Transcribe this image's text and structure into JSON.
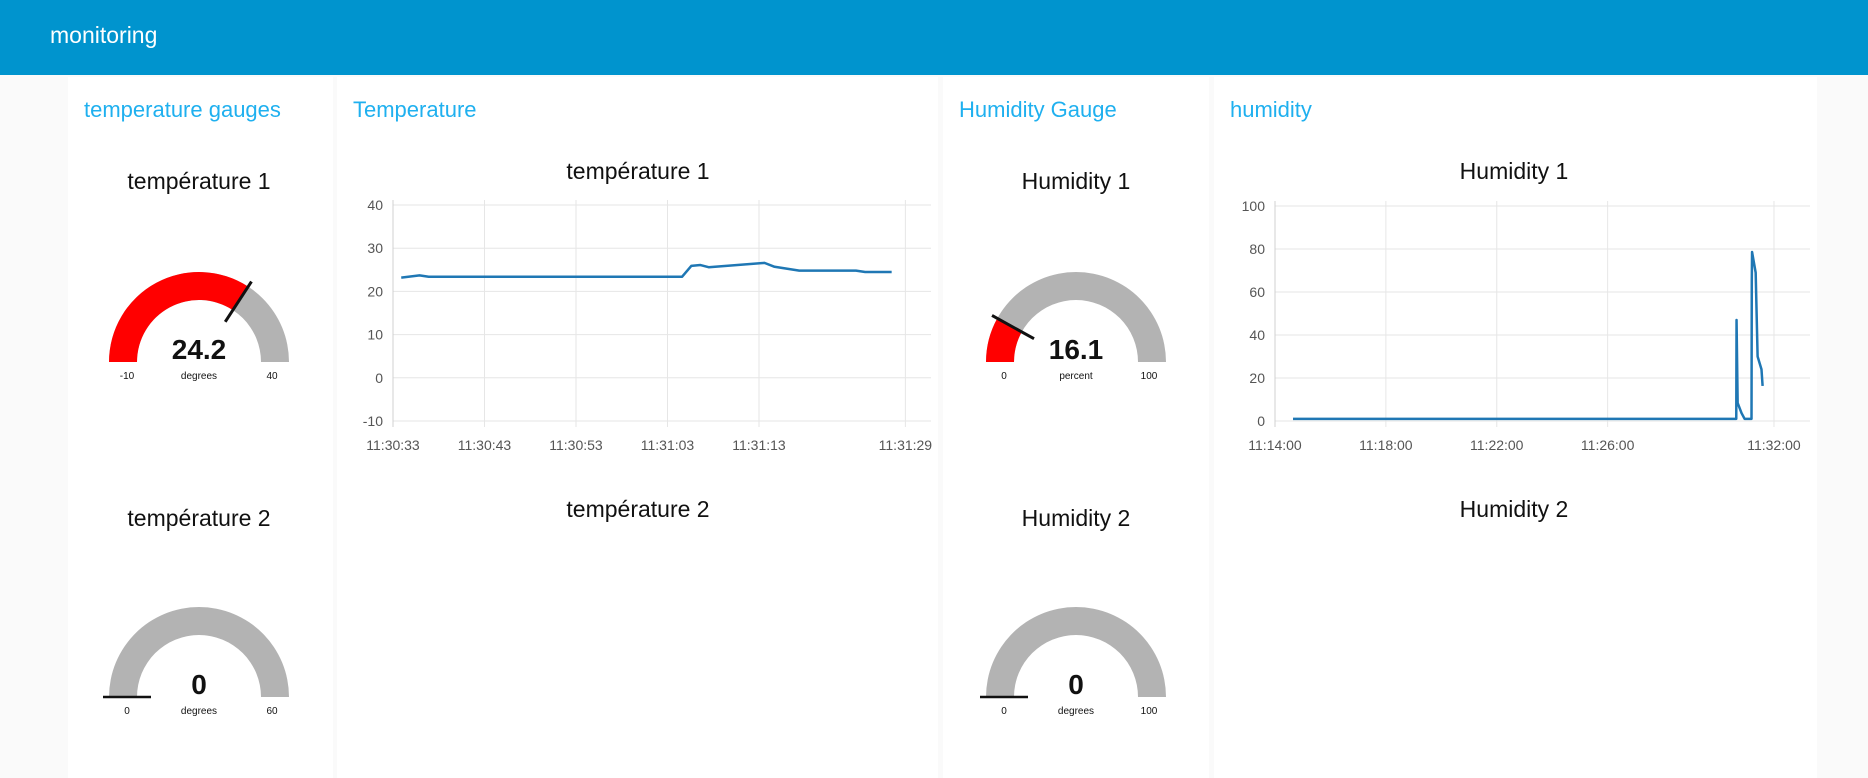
{
  "header": {
    "title": "monitoring"
  },
  "colors": {
    "header": "#0094ce",
    "title": "#1fb0ef",
    "gauge_fill": "#ff0000",
    "gauge_bg": "#b3b3b3",
    "line": "#1f77b4"
  },
  "panels": [
    {
      "title": "temperature gauges"
    },
    {
      "title": "Temperature"
    },
    {
      "title": "Humidity Gauge"
    },
    {
      "title": "humidity"
    }
  ],
  "gauges": [
    {
      "title": "température 1",
      "value": 24.2,
      "display": "24.2",
      "min": -10,
      "max": 40,
      "min_label": "-10",
      "max_label": "40",
      "units": "degrees"
    },
    {
      "title": "température 2",
      "value": 0,
      "display": "0",
      "min": 0,
      "max": 60,
      "min_label": "0",
      "max_label": "60",
      "units": "degrees"
    },
    {
      "title": "Humidity 1",
      "value": 16.1,
      "display": "16.1",
      "min": 0,
      "max": 100,
      "min_label": "0",
      "max_label": "100",
      "units": "percent"
    },
    {
      "title": "Humidity 2",
      "value": 0,
      "display": "0",
      "min": 0,
      "max": 100,
      "min_label": "0",
      "max_label": "100",
      "units": "degrees"
    }
  ],
  "chart_titles": {
    "temp2": "température 2",
    "hum2": "Humidity 2"
  },
  "chart_data": [
    {
      "type": "line",
      "title": "température 1",
      "ylim": [
        -10,
        40
      ],
      "yticks": [
        "-10",
        "0",
        "10",
        "20",
        "30",
        "40"
      ],
      "xunit": "seconds since 11:30:33",
      "xlim": [
        0,
        58.8
      ],
      "xticks": [
        {
          "t": 0,
          "label": "11:30:33"
        },
        {
          "t": 10,
          "label": "11:30:43"
        },
        {
          "t": 20,
          "label": "11:30:53"
        },
        {
          "t": 30,
          "label": "11:31:03"
        },
        {
          "t": 40,
          "label": "11:31:13"
        },
        {
          "t": 56,
          "label": "11:31:29"
        }
      ],
      "x": [
        0.9,
        2.9,
        3.9,
        31.6,
        32.6,
        33.6,
        34.5,
        40.6,
        41.7,
        44.4,
        50.6,
        51.6,
        54.5
      ],
      "y": [
        23.2,
        23.7,
        23.4,
        23.4,
        25.9,
        26.1,
        25.6,
        26.6,
        25.7,
        24.8,
        24.8,
        24.5,
        24.5
      ]
    },
    {
      "type": "line",
      "title": "Humidity 1",
      "ylim": [
        0,
        100
      ],
      "yticks": [
        "0",
        "20",
        "40",
        "60",
        "80",
        "100"
      ],
      "xunit": "minutes since 11:14:00",
      "xlim": [
        0,
        19.3
      ],
      "xticks": [
        {
          "t": 0,
          "label": "11:14:00"
        },
        {
          "t": 4,
          "label": "11:18:00"
        },
        {
          "t": 8,
          "label": "11:22:00"
        },
        {
          "t": 12,
          "label": "11:26:00"
        },
        {
          "t": 18,
          "label": "11:32:00"
        }
      ],
      "x": [
        0.65,
        16.64,
        16.65,
        16.69,
        16.83,
        16.94,
        17.19,
        17.2,
        17.21,
        17.34,
        17.41,
        17.55,
        17.59
      ],
      "y": [
        1,
        1,
        47,
        8.4,
        3.7,
        1,
        1,
        65,
        78.6,
        69,
        30,
        24,
        16.3
      ]
    }
  ]
}
